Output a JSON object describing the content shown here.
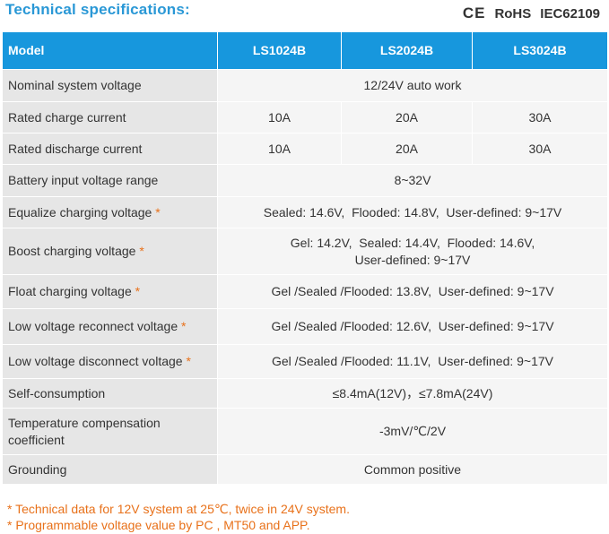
{
  "header": {
    "title": "Technical specifications:",
    "certs": {
      "ce": "CE",
      "rohs": "RoHS",
      "iec": "IEC62109"
    }
  },
  "table": {
    "headers": [
      "Model",
      "LS1024B",
      "LS2024B",
      "LS3024B"
    ],
    "rows": [
      {
        "label": "Nominal system voltage",
        "star": "",
        "values": [
          "12/24V auto work"
        ],
        "height": 36
      },
      {
        "label": "Rated charge current",
        "star": "",
        "values": [
          "10A",
          "20A",
          "30A"
        ],
        "height": 35
      },
      {
        "label": "Rated discharge current",
        "star": "",
        "values": [
          "10A",
          "20A",
          "30A"
        ],
        "height": 35
      },
      {
        "label": "Battery input voltage range",
        "star": "",
        "values": [
          "8~32V"
        ],
        "height": 36
      },
      {
        "label": "Equalize charging voltage",
        "star": "*",
        "values": [
          "Sealed: 14.6V,  Flooded: 14.8V,  User-defined: 9~17V"
        ],
        "height": 35
      },
      {
        "label": "Boost charging voltage",
        "star": "*",
        "values": [
          "Gel: 14.2V,  Sealed: 14.4V,  Flooded: 14.6V,",
          "User-defined: 9~17V"
        ],
        "height": 52
      },
      {
        "label": "Float charging voltage",
        "star": "*",
        "values": [
          "Gel /Sealed /Flooded: 13.8V,  User-defined: 9~17V"
        ],
        "height": 38
      },
      {
        "label": "Low voltage reconnect voltage",
        "star": "*",
        "values": [
          "Gel /Sealed /Flooded: 12.6V,  User-defined: 9~17V"
        ],
        "height": 40
      },
      {
        "label": "Low voltage disconnect voltage",
        "star": "*",
        "values": [
          "Gel /Sealed /Flooded: 11.1V,  User-defined: 9~17V"
        ],
        "height": 38
      },
      {
        "label": "Self-consumption",
        "star": "",
        "values": [
          "≤8.4mA(12V)，≤7.8mA(24V)"
        ],
        "height": 33
      },
      {
        "label": "Temperature  compensation\ncoefficient",
        "star": "",
        "values": [
          "-3mV/℃/2V"
        ],
        "height": 52
      },
      {
        "label": "Grounding",
        "star": "",
        "values": [
          "Common positive"
        ],
        "height": 33
      }
    ]
  },
  "notes": [
    "*  Technical data for 12V system at 25℃, twice in 24V system.",
    "*  Programmable voltage value  by  PC , MT50  and APP."
  ],
  "colors": {
    "header_blue": "#1797dd",
    "title_blue": "#2a98d6",
    "accent_orange": "#e8711a"
  }
}
